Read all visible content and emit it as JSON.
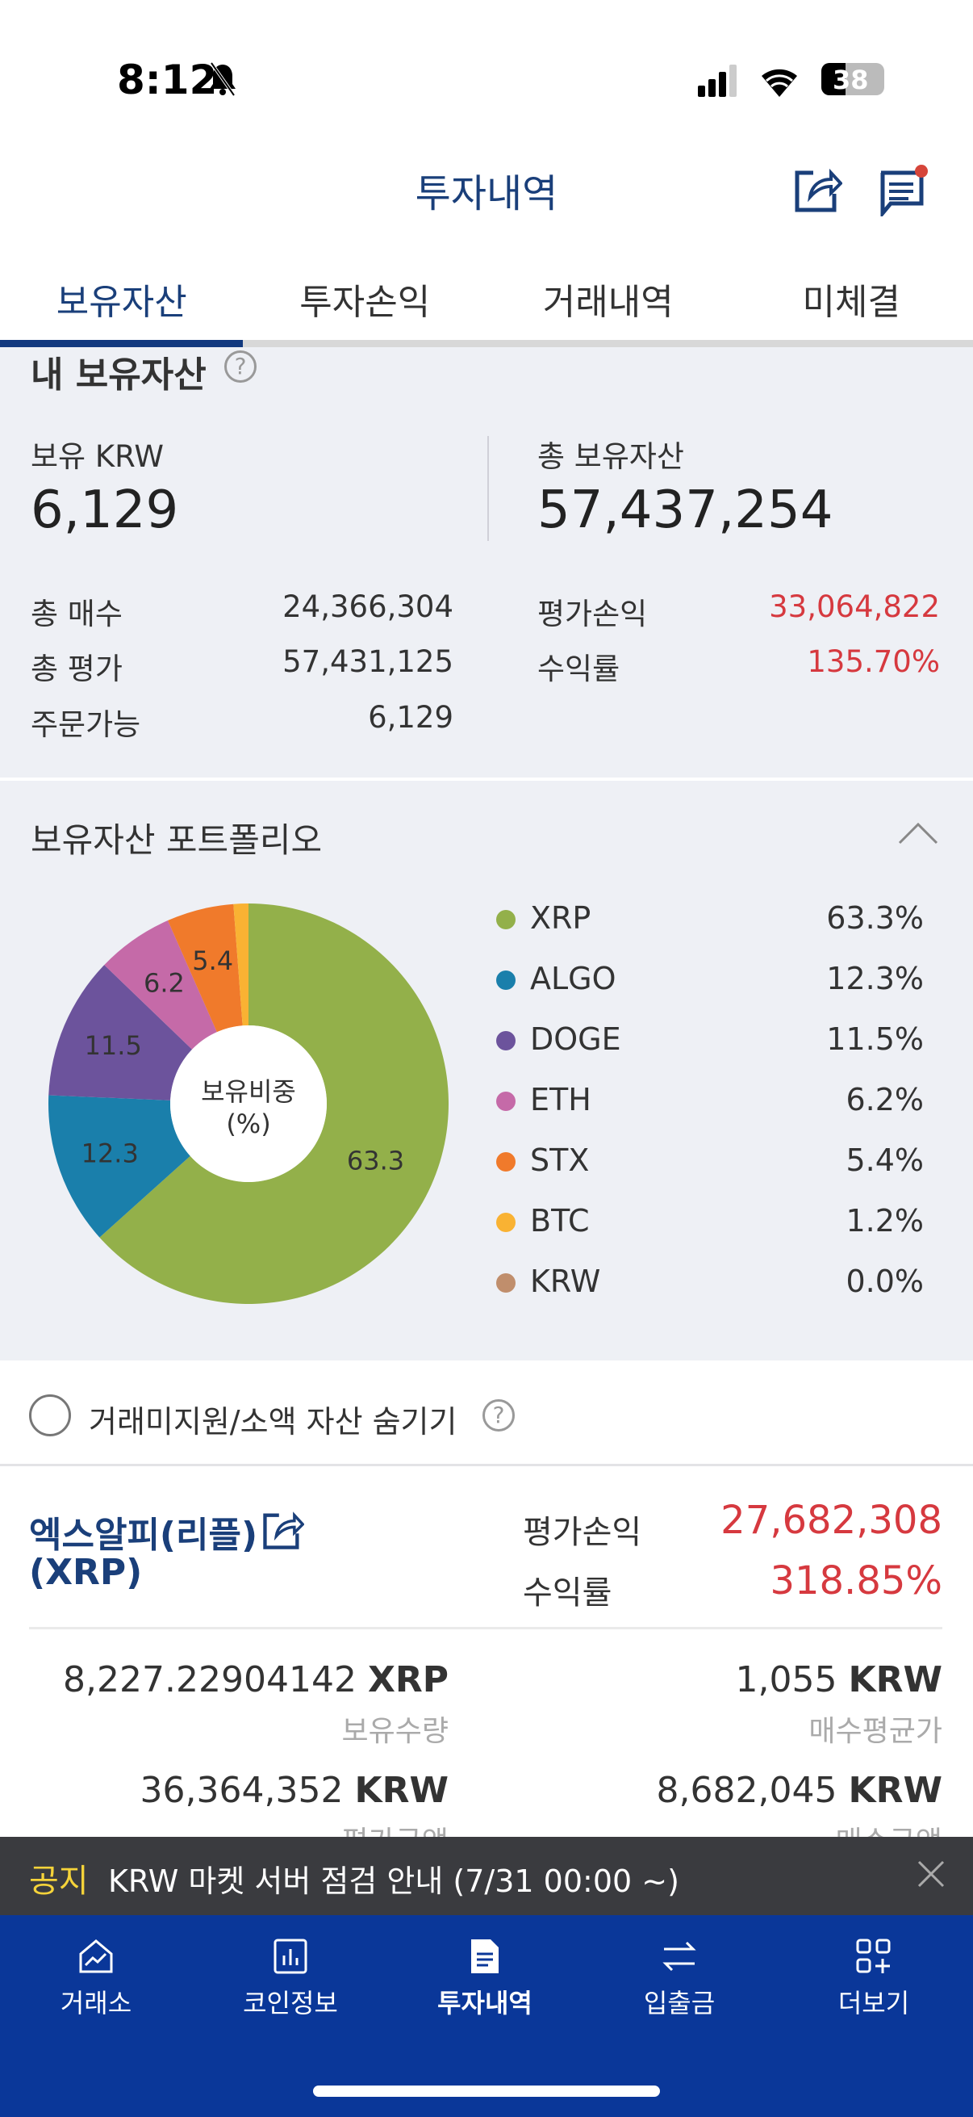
{
  "status": {
    "time": "8:12",
    "battery": "38"
  },
  "header": {
    "title": "투자내역"
  },
  "tabs": [
    {
      "label": "보유자산"
    },
    {
      "label": "투자손익"
    },
    {
      "label": "거래내역"
    },
    {
      "label": "미체결"
    }
  ],
  "summary": {
    "title": "내 보유자산",
    "krw_label": "보유 KRW",
    "krw_value": "6,129",
    "total_label": "총 보유자산",
    "total_value": "57,437,254",
    "rows_left": [
      {
        "label": "총 매수",
        "value": "24,366,304"
      },
      {
        "label": "총 평가",
        "value": "57,431,125"
      },
      {
        "label": "주문가능",
        "value": "6,129"
      }
    ],
    "rows_right": [
      {
        "label": "평가손익",
        "value": "33,064,822"
      },
      {
        "label": "수익률",
        "value": "135.70%"
      }
    ]
  },
  "portfolio": {
    "title": "보유자산 포트폴리오",
    "center_label_1": "보유비중",
    "center_label_2": "(%)"
  },
  "chart_data": {
    "type": "pie",
    "donut": true,
    "start": "top",
    "direction": "clockwise",
    "series": [
      {
        "name": "XRP",
        "value": 63.3,
        "color": "#93b04a"
      },
      {
        "name": "ALGO",
        "value": 12.3,
        "color": "#1a7fab"
      },
      {
        "name": "DOGE",
        "value": 11.5,
        "color": "#6c539c"
      },
      {
        "name": "ETH",
        "value": 6.2,
        "color": "#c56aa8"
      },
      {
        "name": "STX",
        "value": 5.4,
        "color": "#f07a2b"
      },
      {
        "name": "BTC",
        "value": 1.2,
        "color": "#f9b233"
      },
      {
        "name": "KRW",
        "value": 0.0,
        "color": "#c08e6c"
      }
    ],
    "legend_labels": [
      "63.3%",
      "12.3%",
      "11.5%",
      "6.2%",
      "5.4%",
      "1.2%",
      "0.0%"
    ],
    "slice_labels": [
      "63.3",
      "12.3",
      "11.5",
      "6.2",
      "5.4"
    ]
  },
  "hide_small": {
    "label": "거래미지원/소액 자산 숨기기"
  },
  "coin": {
    "name": "엑스알피(리플)",
    "symbol": "(XRP)",
    "pnl_label": "평가손익",
    "pnl_value": "27,682,308",
    "rate_label": "수익률",
    "rate_value": "318.85%",
    "qty": "8,227.22904142",
    "qty_unit": "XRP",
    "qty_label": "보유수량",
    "avg": "1,055",
    "avg_unit": "KRW",
    "avg_label": "매수평균가",
    "eval": "36,364,352",
    "eval_unit": "KRW",
    "eval_label": "평가금액",
    "buy": "8,682,045",
    "buy_unit": "KRW",
    "buy_label": "매수금액"
  },
  "notice": {
    "tag": "공지",
    "text": "KRW 마켓 서버 점검 안내 (7/31 00:00 ~)"
  },
  "nav": [
    {
      "label": "거래소"
    },
    {
      "label": "코인정보"
    },
    {
      "label": "투자내역"
    },
    {
      "label": "입출금"
    },
    {
      "label": "더보기"
    }
  ],
  "colors": {
    "navy": "#1a3f7a",
    "red": "#d6393f",
    "nav_bg": "#0a3799",
    "notice_bg": "#3a3b3f"
  }
}
